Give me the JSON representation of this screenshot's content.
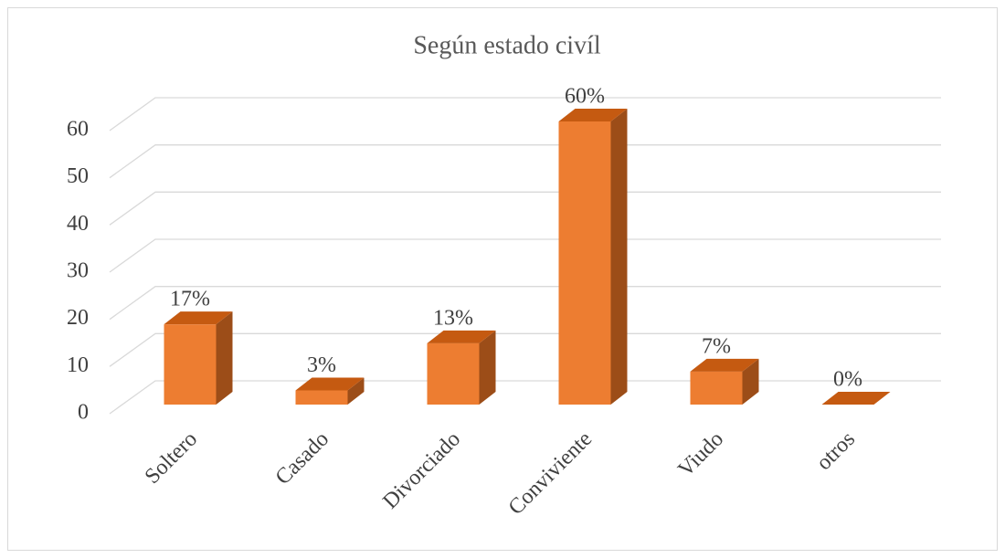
{
  "chart_data": {
    "type": "bar",
    "title": "Según estado civíl",
    "categories": [
      "Soltero",
      "Casado",
      "Divorciado",
      "Conviviente",
      "Viudo",
      "otros"
    ],
    "values": [
      17,
      3,
      13,
      60,
      7,
      0
    ],
    "value_labels": [
      "17%",
      "3%",
      "13%",
      "60%",
      "7%",
      "0%"
    ],
    "color": "#ed7d31",
    "ylim": [
      0,
      60
    ],
    "yticks": [
      0,
      10,
      20,
      30,
      40,
      50,
      60
    ],
    "grid": true
  }
}
